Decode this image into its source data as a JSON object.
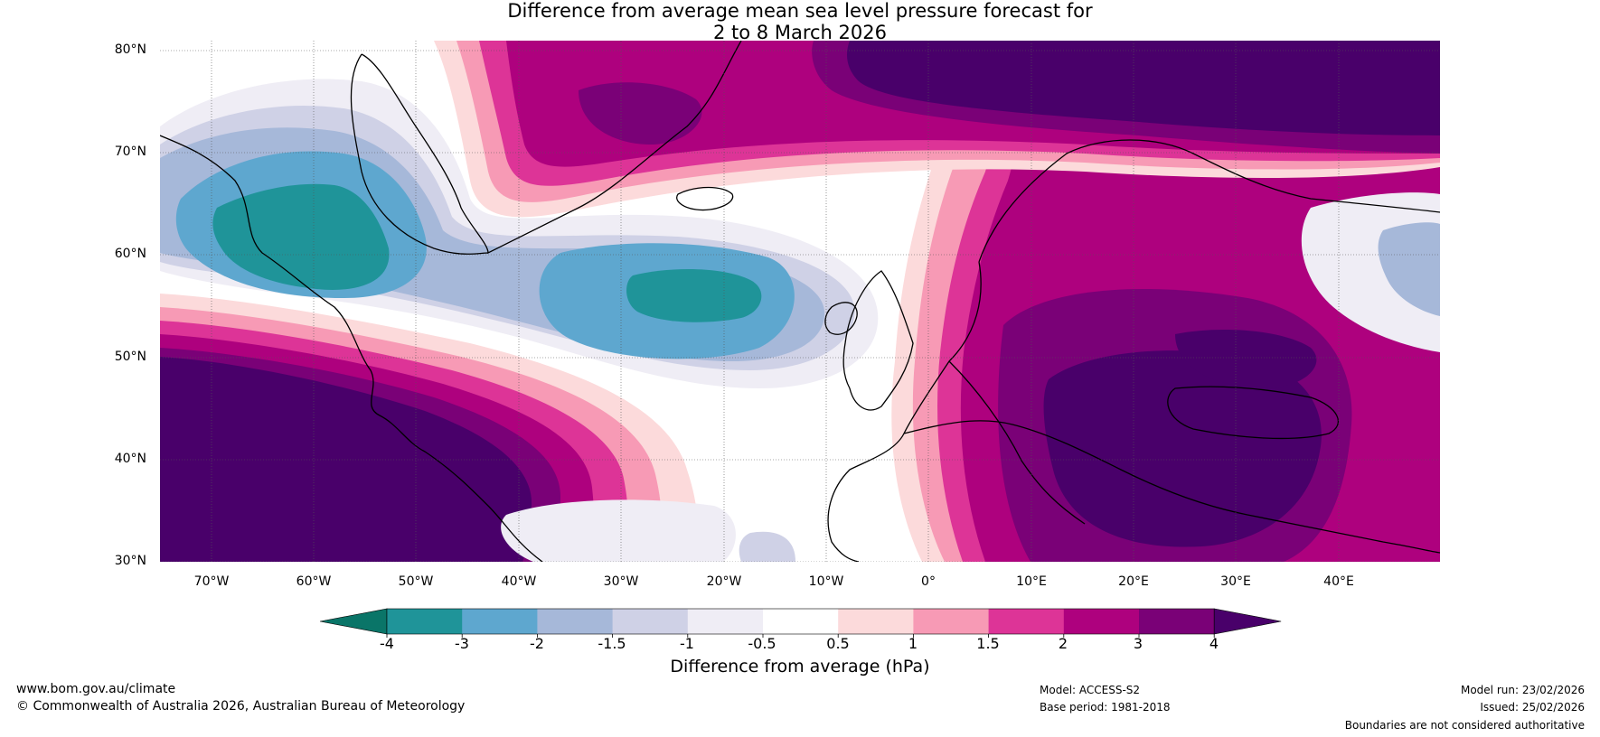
{
  "title": {
    "line1": "Difference from average mean sea level pressure forecast for",
    "line2": "2 to 8 March 2026"
  },
  "map": {
    "region": "North Atlantic and Europe",
    "lat_labels": [
      "80°N",
      "70°N",
      "60°N",
      "50°N",
      "40°N",
      "30°N"
    ],
    "lon_labels": [
      "70°W",
      "60°W",
      "50°W",
      "40°W",
      "30°W",
      "20°W",
      "10°W",
      "0°",
      "10°E",
      "20°E",
      "30°E",
      "40°E"
    ],
    "lat_range": [
      30,
      80
    ],
    "lon_range": [
      -75,
      50
    ]
  },
  "colorbar": {
    "label": "Difference from average (hPa)",
    "ticks": [
      "-4",
      "-3",
      "-2",
      "-1.5",
      "-1",
      "-0.5",
      "0.5",
      "1",
      "1.5",
      "2",
      "3",
      "4"
    ],
    "colors": [
      "#0a7568",
      "#1f9499",
      "#5ea7cf",
      "#a6b8d9",
      "#cfd1e6",
      "#efedf5",
      "#ffffff",
      "#fcdadb",
      "#f79ab5",
      "#dd3497",
      "#ae017e",
      "#7a0177",
      "#49006a"
    ],
    "range": [
      -4,
      4
    ]
  },
  "footer": {
    "website": "www.bom.gov.au/climate",
    "copyright": "© Commonwealth of Australia 2026, Australian Bureau of Meteorology",
    "model": "Model: ACCESS-S2",
    "base_period": "Base period: 1981-2018",
    "model_run": "Model run: 23/02/2026",
    "issued": "Issued: 25/02/2026",
    "disclaimer": "Boundaries are not considered authoritative"
  }
}
